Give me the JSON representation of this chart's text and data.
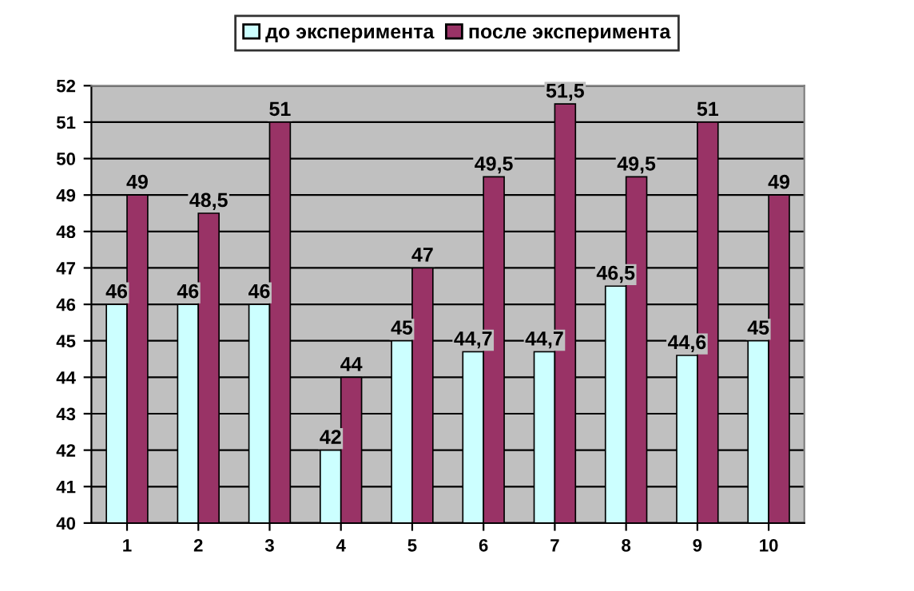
{
  "chart_data": {
    "type": "bar",
    "categories": [
      "1",
      "2",
      "3",
      "4",
      "5",
      "6",
      "7",
      "8",
      "9",
      "10"
    ],
    "series": [
      {
        "name": "до эксперимента",
        "color": "#ccffff",
        "values": [
          46,
          46,
          46,
          42,
          45,
          44.7,
          44.7,
          46.5,
          44.6,
          45
        ],
        "value_labels": [
          "46",
          "46",
          "46",
          "42",
          "45",
          "44,7",
          "44,7",
          "46,5",
          "44,6",
          "45"
        ]
      },
      {
        "name": "после эксперимента",
        "color": "#993366",
        "values": [
          49,
          48.5,
          51,
          44,
          47,
          49.5,
          51.5,
          49.5,
          51,
          49
        ],
        "value_labels": [
          "49",
          "48,5",
          "51",
          "44",
          "47",
          "49,5",
          "51,5",
          "49,5",
          "51",
          "49"
        ]
      }
    ],
    "ylim": [
      40,
      52
    ],
    "yticks": [
      40,
      41,
      42,
      43,
      44,
      45,
      46,
      47,
      48,
      49,
      50,
      51,
      52
    ],
    "grid": "y",
    "legend": "top"
  }
}
